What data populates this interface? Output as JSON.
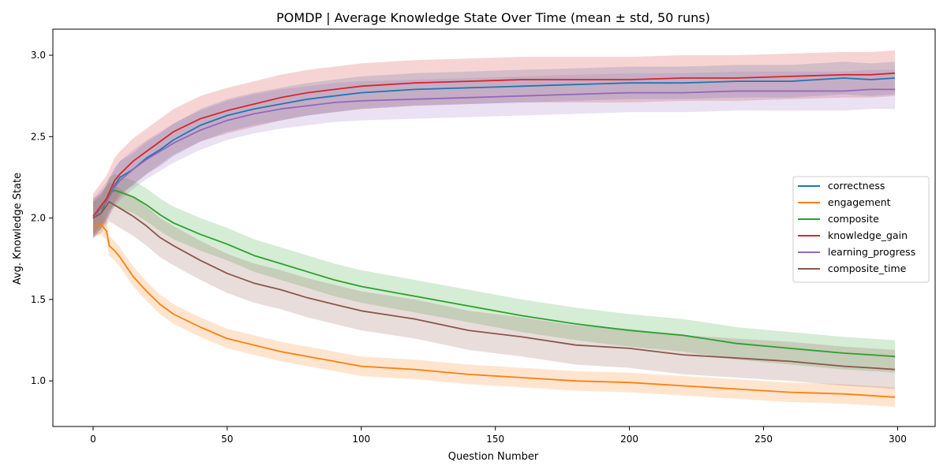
{
  "chart_data": {
    "type": "line",
    "title": "POMDP | Average Knowledge State Over Time (mean ± std, 50 runs)",
    "xlabel": "Question Number",
    "ylabel": "Avg. Knowledge State",
    "xlim": [
      -15,
      314
    ],
    "ylim": [
      0.72,
      3.16
    ],
    "xticks": [
      0,
      50,
      100,
      150,
      200,
      250,
      300
    ],
    "yticks": [
      1.0,
      1.5,
      2.0,
      2.5,
      3.0
    ],
    "xtick_labels": [
      "0",
      "50",
      "100",
      "150",
      "200",
      "250",
      "300"
    ],
    "ytick_labels": [
      "1.0",
      "1.5",
      "2.0",
      "2.5",
      "3.0"
    ],
    "grid": false,
    "legend_position": "center-right",
    "shading": "mean ± std",
    "series": [
      {
        "name": "correctness",
        "color": "#1f77b4",
        "x": [
          0,
          5,
          8,
          10,
          15,
          20,
          25,
          30,
          40,
          50,
          60,
          70,
          80,
          90,
          100,
          120,
          140,
          160,
          180,
          200,
          220,
          240,
          260,
          280,
          290,
          299
        ],
        "y": [
          2.0,
          2.1,
          2.2,
          2.25,
          2.3,
          2.37,
          2.42,
          2.48,
          2.57,
          2.63,
          2.67,
          2.7,
          2.73,
          2.75,
          2.77,
          2.79,
          2.8,
          2.81,
          2.82,
          2.83,
          2.83,
          2.84,
          2.84,
          2.86,
          2.85,
          2.86
        ],
        "std": 0.1
      },
      {
        "name": "engagement",
        "color": "#ff7f0e",
        "x": [
          0,
          3,
          5,
          6,
          8,
          10,
          15,
          20,
          25,
          30,
          40,
          50,
          60,
          70,
          80,
          90,
          100,
          120,
          140,
          160,
          180,
          200,
          220,
          240,
          260,
          280,
          290,
          299
        ],
        "y": [
          1.95,
          1.96,
          1.92,
          1.83,
          1.8,
          1.76,
          1.64,
          1.55,
          1.47,
          1.41,
          1.33,
          1.26,
          1.22,
          1.18,
          1.15,
          1.12,
          1.09,
          1.07,
          1.04,
          1.02,
          1.0,
          0.99,
          0.97,
          0.95,
          0.93,
          0.92,
          0.91,
          0.9
        ],
        "std": 0.06
      },
      {
        "name": "composite",
        "color": "#2ca02c",
        "x": [
          0,
          3,
          6,
          8,
          10,
          15,
          20,
          25,
          30,
          40,
          50,
          60,
          70,
          80,
          90,
          100,
          120,
          140,
          160,
          180,
          200,
          220,
          240,
          260,
          280,
          290,
          299
        ],
        "y": [
          2.0,
          2.03,
          2.15,
          2.17,
          2.16,
          2.13,
          2.08,
          2.02,
          1.97,
          1.9,
          1.84,
          1.77,
          1.72,
          1.67,
          1.62,
          1.58,
          1.52,
          1.46,
          1.4,
          1.35,
          1.31,
          1.28,
          1.23,
          1.2,
          1.17,
          1.16,
          1.15
        ],
        "std": 0.1
      },
      {
        "name": "knowledge_gain",
        "color": "#d62728",
        "x": [
          0,
          5,
          8,
          10,
          15,
          20,
          25,
          30,
          40,
          50,
          60,
          70,
          80,
          90,
          100,
          120,
          140,
          160,
          180,
          200,
          220,
          240,
          260,
          280,
          290,
          299
        ],
        "y": [
          2.01,
          2.12,
          2.23,
          2.27,
          2.35,
          2.41,
          2.47,
          2.53,
          2.61,
          2.66,
          2.7,
          2.74,
          2.77,
          2.79,
          2.81,
          2.83,
          2.84,
          2.85,
          2.85,
          2.85,
          2.86,
          2.86,
          2.87,
          2.88,
          2.88,
          2.89
        ],
        "std": 0.14
      },
      {
        "name": "learning_progress",
        "color": "#9467bd",
        "x": [
          0,
          5,
          8,
          10,
          15,
          20,
          25,
          30,
          40,
          50,
          60,
          70,
          80,
          90,
          100,
          120,
          140,
          160,
          180,
          200,
          220,
          240,
          260,
          280,
          290,
          299
        ],
        "y": [
          2.0,
          2.1,
          2.19,
          2.23,
          2.3,
          2.36,
          2.41,
          2.46,
          2.54,
          2.6,
          2.64,
          2.67,
          2.69,
          2.71,
          2.72,
          2.73,
          2.74,
          2.75,
          2.76,
          2.77,
          2.77,
          2.78,
          2.78,
          2.78,
          2.79,
          2.79
        ],
        "std": 0.12
      },
      {
        "name": "composite_time",
        "color": "#8c564b",
        "x": [
          0,
          3,
          6,
          8,
          10,
          15,
          20,
          25,
          30,
          40,
          50,
          60,
          70,
          80,
          90,
          100,
          120,
          140,
          160,
          180,
          200,
          220,
          240,
          260,
          280,
          290,
          299
        ],
        "y": [
          2.0,
          2.03,
          2.1,
          2.08,
          2.06,
          2.01,
          1.95,
          1.88,
          1.83,
          1.74,
          1.66,
          1.6,
          1.56,
          1.51,
          1.47,
          1.43,
          1.38,
          1.31,
          1.27,
          1.22,
          1.2,
          1.16,
          1.14,
          1.12,
          1.09,
          1.08,
          1.07
        ],
        "std": 0.12
      }
    ]
  }
}
